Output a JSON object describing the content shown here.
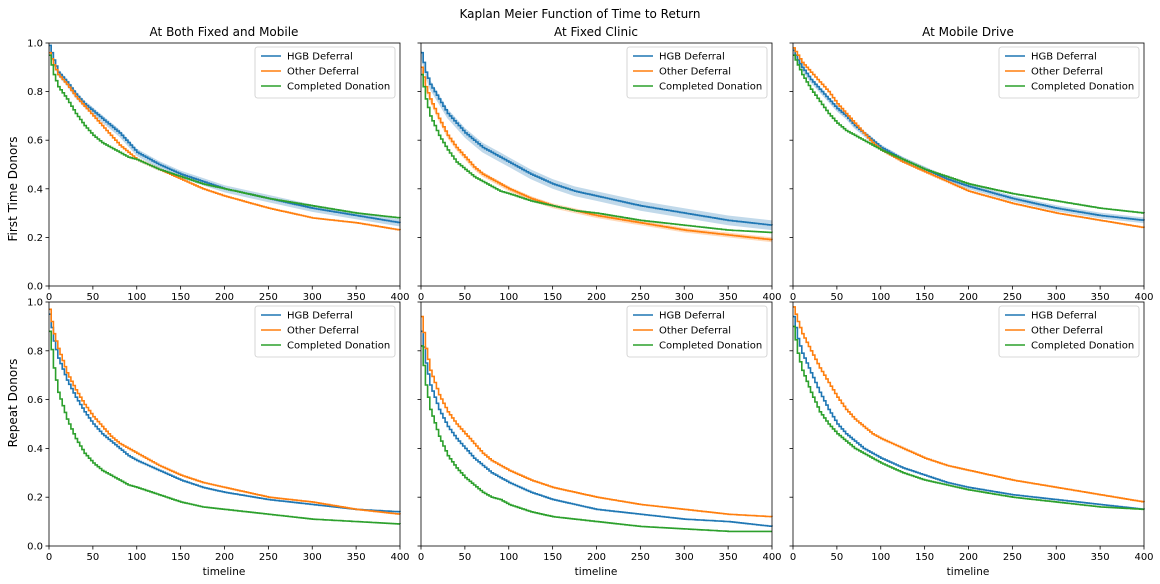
{
  "figure": {
    "suptitle": "Kaplan Meier Function of Time to Return",
    "row_labels": [
      "First Time Donors",
      "Repeat Donors"
    ],
    "col_titles": [
      "At Both Fixed and Mobile",
      "At Fixed Clinic",
      "At Mobile Drive"
    ],
    "xlabel": "timeline"
  },
  "legend": {
    "entries": [
      "HGB Deferral",
      "Other Deferral",
      "Completed Donation"
    ],
    "colors": [
      "#1f77b4",
      "#ff7f0e",
      "#2ca02c"
    ]
  },
  "axes": {
    "xlim": [
      0,
      400
    ],
    "ylim": [
      0,
      1.0
    ],
    "xticks": [
      0,
      50,
      100,
      150,
      200,
      250,
      300,
      350,
      400
    ],
    "yticks": [
      0.0,
      0.2,
      0.4,
      0.6,
      0.8,
      1.0
    ],
    "ytick_labels": [
      "0.0",
      "0.2",
      "0.4",
      "0.6",
      "0.8",
      "1.0"
    ]
  },
  "chart_data": [
    {
      "type": "line",
      "title": "At Both Fixed and Mobile",
      "ylabel": "First Time Donors",
      "xlabel": "",
      "legend": "top-right",
      "x": [
        0,
        5,
        10,
        20,
        30,
        40,
        50,
        60,
        70,
        80,
        90,
        100,
        125,
        150,
        175,
        200,
        250,
        300,
        350,
        400
      ],
      "series": [
        {
          "name": "HGB Deferral",
          "values": [
            0.99,
            0.93,
            0.88,
            0.84,
            0.79,
            0.75,
            0.72,
            0.69,
            0.66,
            0.63,
            0.59,
            0.55,
            0.5,
            0.46,
            0.43,
            0.4,
            0.36,
            0.32,
            0.29,
            0.26
          ],
          "ci": 0.015
        },
        {
          "name": "Other Deferral",
          "values": [
            0.96,
            0.91,
            0.87,
            0.83,
            0.78,
            0.74,
            0.7,
            0.66,
            0.62,
            0.58,
            0.55,
            0.52,
            0.48,
            0.44,
            0.4,
            0.37,
            0.32,
            0.28,
            0.26,
            0.23
          ]
        },
        {
          "name": "Completed Donation",
          "values": [
            0.95,
            0.87,
            0.82,
            0.77,
            0.71,
            0.66,
            0.62,
            0.59,
            0.57,
            0.55,
            0.53,
            0.52,
            0.48,
            0.45,
            0.42,
            0.4,
            0.36,
            0.33,
            0.3,
            0.28
          ]
        }
      ]
    },
    {
      "type": "line",
      "title": "At Fixed Clinic",
      "ylabel": "",
      "xlabel": "",
      "legend": "top-right",
      "x": [
        0,
        5,
        10,
        20,
        30,
        40,
        50,
        60,
        70,
        80,
        90,
        100,
        125,
        150,
        175,
        200,
        250,
        300,
        350,
        400
      ],
      "series": [
        {
          "name": "HGB Deferral",
          "values": [
            0.96,
            0.88,
            0.83,
            0.77,
            0.71,
            0.67,
            0.63,
            0.6,
            0.57,
            0.55,
            0.53,
            0.51,
            0.46,
            0.42,
            0.39,
            0.37,
            0.33,
            0.3,
            0.27,
            0.25
          ],
          "ci": 0.02
        },
        {
          "name": "Other Deferral",
          "values": [
            0.9,
            0.82,
            0.77,
            0.69,
            0.62,
            0.57,
            0.53,
            0.49,
            0.46,
            0.44,
            0.42,
            0.4,
            0.36,
            0.33,
            0.31,
            0.29,
            0.26,
            0.23,
            0.21,
            0.19
          ],
          "ci": 0.01
        },
        {
          "name": "Completed Donation",
          "values": [
            0.87,
            0.77,
            0.7,
            0.62,
            0.56,
            0.51,
            0.48,
            0.45,
            0.43,
            0.41,
            0.39,
            0.38,
            0.35,
            0.33,
            0.31,
            0.3,
            0.27,
            0.25,
            0.23,
            0.22
          ]
        }
      ]
    },
    {
      "type": "line",
      "title": "At Mobile Drive",
      "ylabel": "",
      "xlabel": "",
      "legend": "top-right",
      "x": [
        0,
        5,
        10,
        20,
        30,
        40,
        50,
        60,
        70,
        80,
        90,
        100,
        125,
        150,
        175,
        200,
        250,
        300,
        350,
        400
      ],
      "series": [
        {
          "name": "HGB Deferral",
          "values": [
            0.97,
            0.93,
            0.9,
            0.85,
            0.81,
            0.77,
            0.73,
            0.7,
            0.66,
            0.63,
            0.6,
            0.57,
            0.52,
            0.48,
            0.44,
            0.41,
            0.36,
            0.32,
            0.29,
            0.27
          ],
          "ci": 0.012
        },
        {
          "name": "Other Deferral",
          "values": [
            0.98,
            0.95,
            0.92,
            0.88,
            0.84,
            0.8,
            0.75,
            0.71,
            0.67,
            0.63,
            0.59,
            0.56,
            0.51,
            0.47,
            0.43,
            0.39,
            0.34,
            0.3,
            0.27,
            0.24
          ]
        },
        {
          "name": "Completed Donation",
          "values": [
            0.95,
            0.91,
            0.87,
            0.81,
            0.76,
            0.71,
            0.67,
            0.64,
            0.62,
            0.6,
            0.58,
            0.56,
            0.52,
            0.48,
            0.45,
            0.42,
            0.38,
            0.35,
            0.32,
            0.3
          ]
        }
      ]
    },
    {
      "type": "line",
      "title": "",
      "ylabel": "Repeat Donors",
      "xlabel": "timeline",
      "legend": "top-right",
      "x": [
        0,
        5,
        10,
        20,
        30,
        40,
        50,
        60,
        70,
        80,
        90,
        100,
        125,
        150,
        175,
        200,
        250,
        300,
        350,
        400
      ],
      "series": [
        {
          "name": "HGB Deferral",
          "values": [
            0.95,
            0.84,
            0.77,
            0.68,
            0.61,
            0.55,
            0.5,
            0.46,
            0.43,
            0.4,
            0.37,
            0.35,
            0.31,
            0.27,
            0.24,
            0.22,
            0.19,
            0.17,
            0.15,
            0.14
          ]
        },
        {
          "name": "Other Deferral",
          "values": [
            0.97,
            0.87,
            0.81,
            0.71,
            0.64,
            0.58,
            0.53,
            0.49,
            0.45,
            0.42,
            0.4,
            0.38,
            0.33,
            0.29,
            0.26,
            0.24,
            0.2,
            0.18,
            0.15,
            0.13
          ]
        },
        {
          "name": "Completed Donation",
          "values": [
            0.88,
            0.73,
            0.63,
            0.52,
            0.44,
            0.38,
            0.34,
            0.31,
            0.29,
            0.27,
            0.25,
            0.24,
            0.21,
            0.18,
            0.16,
            0.15,
            0.13,
            0.11,
            0.1,
            0.09
          ]
        }
      ]
    },
    {
      "type": "line",
      "title": "",
      "ylabel": "",
      "xlabel": "timeline",
      "legend": "top-right",
      "x": [
        0,
        5,
        10,
        20,
        30,
        40,
        50,
        60,
        70,
        80,
        90,
        100,
        125,
        150,
        175,
        200,
        250,
        300,
        350,
        400
      ],
      "series": [
        {
          "name": "HGB Deferral",
          "values": [
            0.88,
            0.75,
            0.66,
            0.56,
            0.49,
            0.44,
            0.4,
            0.36,
            0.33,
            0.3,
            0.28,
            0.26,
            0.22,
            0.19,
            0.17,
            0.15,
            0.13,
            0.11,
            0.1,
            0.08
          ]
        },
        {
          "name": "Other Deferral",
          "values": [
            0.94,
            0.81,
            0.72,
            0.62,
            0.55,
            0.5,
            0.46,
            0.42,
            0.38,
            0.35,
            0.33,
            0.31,
            0.27,
            0.24,
            0.22,
            0.2,
            0.17,
            0.15,
            0.13,
            0.12
          ]
        },
        {
          "name": "Completed Donation",
          "values": [
            0.82,
            0.66,
            0.56,
            0.45,
            0.37,
            0.32,
            0.28,
            0.25,
            0.22,
            0.2,
            0.19,
            0.17,
            0.14,
            0.12,
            0.11,
            0.1,
            0.08,
            0.07,
            0.06,
            0.06
          ]
        }
      ]
    },
    {
      "type": "line",
      "title": "",
      "ylabel": "",
      "xlabel": "timeline",
      "legend": "top-right",
      "x": [
        0,
        5,
        10,
        20,
        30,
        40,
        50,
        60,
        70,
        80,
        90,
        100,
        125,
        150,
        175,
        200,
        250,
        300,
        350,
        400
      ],
      "series": [
        {
          "name": "HGB Deferral",
          "values": [
            0.94,
            0.85,
            0.79,
            0.71,
            0.63,
            0.56,
            0.5,
            0.46,
            0.43,
            0.4,
            0.38,
            0.36,
            0.32,
            0.29,
            0.26,
            0.24,
            0.21,
            0.19,
            0.17,
            0.15
          ]
        },
        {
          "name": "Other Deferral",
          "values": [
            0.98,
            0.92,
            0.87,
            0.8,
            0.73,
            0.67,
            0.61,
            0.56,
            0.52,
            0.49,
            0.46,
            0.44,
            0.4,
            0.36,
            0.33,
            0.31,
            0.27,
            0.24,
            0.21,
            0.18
          ]
        },
        {
          "name": "Completed Donation",
          "values": [
            0.9,
            0.79,
            0.72,
            0.63,
            0.55,
            0.5,
            0.46,
            0.43,
            0.4,
            0.38,
            0.36,
            0.34,
            0.3,
            0.27,
            0.25,
            0.23,
            0.2,
            0.18,
            0.16,
            0.15
          ]
        }
      ]
    }
  ]
}
